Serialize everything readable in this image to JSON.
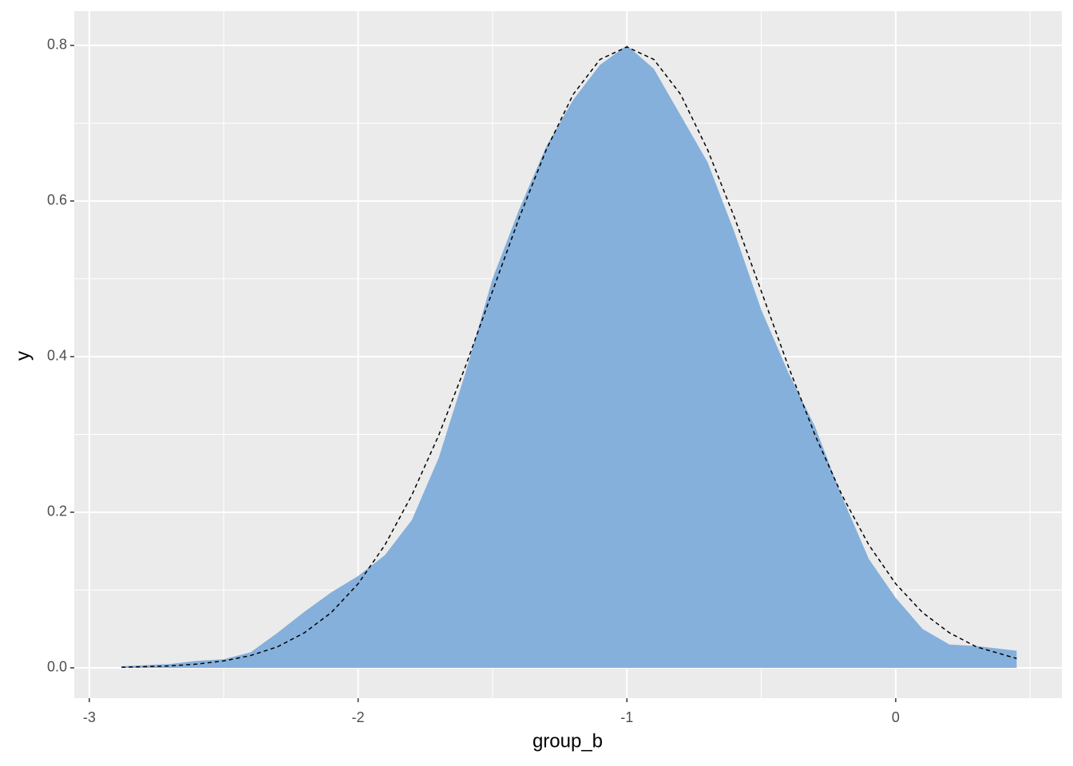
{
  "chart_data": {
    "type": "area",
    "x_label": "group_b",
    "y_label": "y",
    "x": [
      -2.88,
      -2.7,
      -2.6,
      -2.5,
      -2.4,
      -2.3,
      -2.2,
      -2.1,
      -2.0,
      -1.9,
      -1.8,
      -1.7,
      -1.6,
      -1.5,
      -1.4,
      -1.3,
      -1.2,
      -1.1,
      -1.0,
      -0.9,
      -0.8,
      -0.7,
      -0.6,
      -0.5,
      -0.4,
      -0.3,
      -0.2,
      -0.1,
      0.0,
      0.1,
      0.2,
      0.3,
      0.45
    ],
    "series": [
      {
        "kind": "area",
        "color": "#7fadda",
        "values": [
          0.002,
          0.005,
          0.009,
          0.011,
          0.02,
          0.045,
          0.072,
          0.097,
          0.118,
          0.145,
          0.19,
          0.27,
          0.38,
          0.5,
          0.59,
          0.67,
          0.73,
          0.775,
          0.8,
          0.77,
          0.71,
          0.65,
          0.56,
          0.46,
          0.38,
          0.31,
          0.22,
          0.14,
          0.09,
          0.05,
          0.03,
          0.028,
          0.022
        ]
      },
      {
        "kind": "line",
        "dashed": true,
        "color": "#000000",
        "values": [
          0.0007,
          0.0025,
          0.0048,
          0.0089,
          0.0158,
          0.027,
          0.045,
          0.071,
          0.108,
          0.158,
          0.222,
          0.299,
          0.388,
          0.484,
          0.579,
          0.666,
          0.737,
          0.782,
          0.798,
          0.782,
          0.737,
          0.666,
          0.579,
          0.484,
          0.388,
          0.299,
          0.222,
          0.158,
          0.108,
          0.071,
          0.045,
          0.027,
          0.012
        ]
      }
    ],
    "xlim": [
      -3.056,
      0.618
    ],
    "ylim": [
      -0.039,
      0.844
    ],
    "xticks": [
      -3,
      -2,
      -1,
      0
    ],
    "yticks": [
      {
        "value": 0,
        "label": "0.0"
      },
      0.2,
      0.4,
      0.6,
      0.8
    ],
    "grid": true
  }
}
